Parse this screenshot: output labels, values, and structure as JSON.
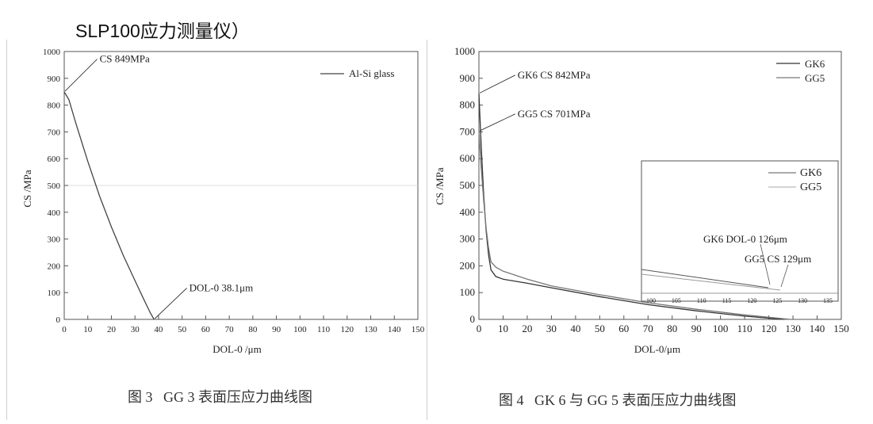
{
  "page": {
    "top_caption": "SLP100应力测量仪）"
  },
  "chart_data": [
    {
      "type": "line",
      "caption": "图 3   GG 3 表面压应力曲线图",
      "xlabel": "DOL-0 /μm",
      "ylabel": "CS /MPa",
      "xlim": [
        0,
        150
      ],
      "ylim": [
        0,
        1000
      ],
      "x_ticks": [
        0,
        10,
        20,
        30,
        40,
        50,
        60,
        70,
        80,
        90,
        100,
        110,
        120,
        130,
        140,
        150
      ],
      "x_tick_labels": [
        "0",
        "10",
        "20",
        "30",
        "40",
        "50",
        "60",
        "70",
        "80",
        "90",
        "100",
        "110",
        "120",
        "130",
        "140",
        "150"
      ],
      "y_ticks": [
        0,
        100,
        200,
        300,
        400,
        500,
        600,
        700,
        800,
        900,
        1000
      ],
      "legend_position": "top-right",
      "series": [
        {
          "name": "Al-Si glass",
          "color": "#444444",
          "x": [
            0,
            2,
            5,
            10,
            15,
            20,
            25,
            30,
            34,
            36.5,
            38.1
          ],
          "y": [
            849,
            820,
            730,
            590,
            460,
            345,
            240,
            145,
            70,
            25,
            0
          ]
        }
      ],
      "annotations": [
        {
          "text": "CS  849MPa",
          "at": [
            0,
            849
          ],
          "label_at": [
            15,
            960
          ]
        },
        {
          "text": "DOL-0 38.1μm",
          "at": [
            38.1,
            0
          ],
          "label_at": [
            53,
            105
          ]
        }
      ]
    },
    {
      "type": "line",
      "caption": "图 4   GK 6 与 GG 5 表面压应力曲线图",
      "xlabel": "DOL-0/μm",
      "ylabel": "CS /MPa",
      "xlim": [
        0,
        150
      ],
      "ylim": [
        0,
        1000
      ],
      "x_ticks": [
        0,
        10,
        20,
        30,
        40,
        50,
        60,
        70,
        80,
        90,
        100,
        110,
        120,
        130,
        140,
        150
      ],
      "x_tick_labels": [
        "0",
        "10",
        "20",
        "30",
        "40",
        "50",
        "60",
        "70",
        "80",
        "90",
        "100",
        "110",
        "120",
        "130",
        "140",
        "150"
      ],
      "y_ticks": [
        0,
        100,
        200,
        300,
        400,
        500,
        600,
        700,
        800,
        900,
        1000
      ],
      "legend_position": "top-right",
      "series": [
        {
          "name": "GK6",
          "color": "#333333",
          "x": [
            0,
            1,
            2,
            3,
            4,
            5,
            7,
            10,
            20,
            30,
            50,
            70,
            90,
            110,
            126
          ],
          "y": [
            842,
            640,
            460,
            330,
            240,
            185,
            160,
            150,
            135,
            118,
            85,
            55,
            32,
            12,
            0
          ]
        },
        {
          "name": "GG5",
          "color": "#777777",
          "x": [
            0,
            1,
            2,
            3,
            4,
            5,
            7,
            10,
            20,
            30,
            50,
            70,
            90,
            110,
            129
          ],
          "y": [
            701,
            560,
            440,
            340,
            265,
            215,
            195,
            180,
            150,
            125,
            92,
            62,
            38,
            17,
            0
          ]
        }
      ],
      "annotations": [
        {
          "text": "GK6 CS 842MPa",
          "at": [
            0,
            842
          ],
          "label_at": [
            16,
            900
          ]
        },
        {
          "text": "GG5 CS 701MPa",
          "at": [
            0,
            701
          ],
          "label_at": [
            16,
            755
          ]
        }
      ],
      "inset": {
        "xlim": [
          100,
          140
        ],
        "ylim": [
          0,
          1
        ],
        "x_tick_labels": [
          "100",
          "105",
          "110",
          "115",
          "120",
          "125",
          "130",
          "135"
        ],
        "legend": [
          {
            "name": "GK6",
            "color": "#555555"
          },
          {
            "name": "GG5",
            "color": "#aaaaaa"
          }
        ],
        "annotations": [
          "GK6 DOL-0 126μm",
          "GG5 CS 129μm"
        ]
      }
    }
  ]
}
